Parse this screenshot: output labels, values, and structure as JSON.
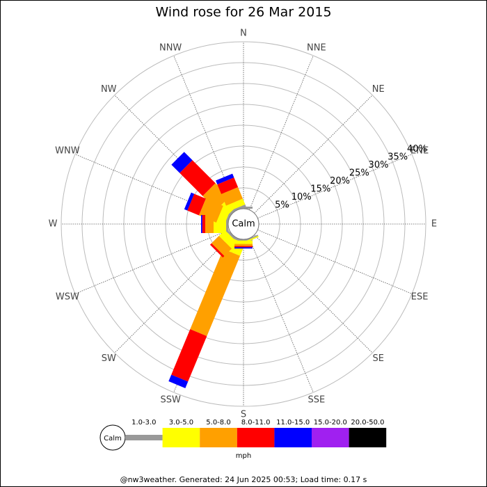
{
  "chart_data": {
    "type": "wind_rose",
    "title": "Wind rose for 26 Mar 2015",
    "directions": [
      "N",
      "NNE",
      "NE",
      "ENE",
      "E",
      "ESE",
      "SE",
      "SSE",
      "S",
      "SSW",
      "SW",
      "WSW",
      "W",
      "WNW",
      "NW",
      "NNW"
    ],
    "rlim": [
      0,
      40
    ],
    "rticks": [
      {
        "value": 5,
        "label": "5%"
      },
      {
        "value": 10,
        "label": "10%"
      },
      {
        "value": 15,
        "label": "15%"
      },
      {
        "value": 20,
        "label": "20%"
      },
      {
        "value": 25,
        "label": "25%"
      },
      {
        "value": 30,
        "label": "30%"
      },
      {
        "value": 35,
        "label": "35%"
      },
      {
        "value": 40,
        "label": "40%"
      }
    ],
    "calm_label": "Calm",
    "legend_unit": "mph",
    "series": [
      {
        "name": "1.0-3.0",
        "color": "#999999",
        "values": [
          0.5,
          0,
          0,
          0,
          0,
          0,
          0,
          0.3,
          0.3,
          0.5,
          0.5,
          0,
          0.5,
          0.5,
          0.5,
          0.5
        ]
      },
      {
        "name": "3.0-5.0",
        "color": "#ffff00",
        "values": [
          0,
          0,
          0,
          0,
          0,
          0,
          0,
          0.3,
          0.8,
          3.2,
          2,
          0,
          3,
          2,
          2.8,
          1.5
        ]
      },
      {
        "name": "5.0-8.0",
        "color": "#ffa000",
        "values": [
          0,
          0,
          0,
          0,
          0,
          0,
          0,
          0,
          0.5,
          20.8,
          2.5,
          0,
          2,
          4.5,
          4.7,
          3
        ]
      },
      {
        "name": "8.0-11.0",
        "color": "#ff0000",
        "values": [
          0,
          0,
          0,
          0,
          0,
          0,
          0,
          0,
          0.3,
          11.8,
          0.5,
          0,
          0.7,
          3,
          7.8,
          2.5
        ]
      },
      {
        "name": "11.0-15.0",
        "color": "#0000ff",
        "values": [
          0,
          0,
          0,
          0,
          0,
          0,
          0,
          0,
          0.3,
          1.7,
          0,
          0,
          0.3,
          0.8,
          2.8,
          1
        ]
      },
      {
        "name": "15.0-20.0",
        "color": "#a020f0",
        "values": [
          0,
          0,
          0,
          0,
          0,
          0,
          0,
          0,
          0,
          0,
          0,
          0,
          0,
          0,
          0,
          0
        ]
      },
      {
        "name": "20.0-50.0",
        "color": "#000000",
        "values": [
          0,
          0,
          0,
          0,
          0,
          0,
          0,
          0,
          0,
          0,
          0,
          0,
          0,
          0,
          0,
          0
        ]
      }
    ],
    "footer": "@nw3weather. Generated: 24 Jun 2025 00:53; Load time: 0.17 s"
  }
}
